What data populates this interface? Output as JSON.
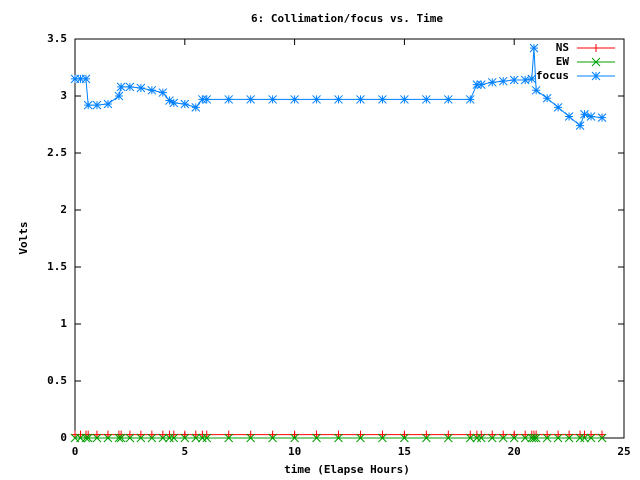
{
  "chart_data": {
    "type": "line",
    "title": "6: Collimation/focus vs. Time",
    "x_label": "time (Elapse Hours)",
    "y_label": "Volts",
    "x": [
      0,
      0.25,
      0.5,
      0.6,
      1,
      1.5,
      2,
      2.1,
      2.5,
      3,
      3.5,
      4,
      4.3,
      4.5,
      5,
      5.5,
      5.8,
      6,
      7,
      8,
      9,
      10,
      11,
      12,
      13,
      14,
      15,
      16,
      17,
      18,
      18.3,
      18.5,
      19,
      19.5,
      20,
      20.5,
      20.8,
      20.9,
      21,
      21.5,
      22,
      22.5,
      23,
      23.2,
      23.5,
      24
    ],
    "series": [
      {
        "name": "NS",
        "color": "#ff0000",
        "marker": "plus",
        "values": [
          0.03,
          0.03,
          0.03,
          0.03,
          0.03,
          0.03,
          0.03,
          0.03,
          0.03,
          0.03,
          0.03,
          0.03,
          0.03,
          0.03,
          0.03,
          0.03,
          0.03,
          0.03,
          0.03,
          0.03,
          0.03,
          0.03,
          0.03,
          0.03,
          0.03,
          0.03,
          0.03,
          0.03,
          0.03,
          0.03,
          0.03,
          0.03,
          0.03,
          0.03,
          0.03,
          0.03,
          0.03,
          0.03,
          0.03,
          0.03,
          0.03,
          0.03,
          0.03,
          0.03,
          0.03,
          0.03
        ]
      },
      {
        "name": "EW",
        "color": "#00a000",
        "marker": "cross",
        "values": [
          0,
          0,
          0,
          0,
          0,
          0,
          0,
          0,
          0,
          0,
          0,
          0,
          0,
          0,
          0,
          0,
          0,
          0,
          0,
          0,
          0,
          0,
          0,
          0,
          0,
          0,
          0,
          0,
          0,
          0,
          0,
          0,
          0,
          0,
          0,
          0,
          0,
          0,
          0,
          0,
          0,
          0,
          0,
          0,
          0,
          0
        ]
      },
      {
        "name": "focus",
        "color": "#0080ff",
        "marker": "star",
        "values": [
          3.15,
          3.15,
          3.15,
          2.92,
          2.92,
          2.93,
          3.0,
          3.08,
          3.08,
          3.07,
          3.05,
          3.03,
          2.96,
          2.94,
          2.93,
          2.9,
          2.97,
          2.97,
          2.97,
          2.97,
          2.97,
          2.97,
          2.97,
          2.97,
          2.97,
          2.97,
          2.97,
          2.97,
          2.97,
          2.97,
          3.1,
          3.1,
          3.12,
          3.13,
          3.14,
          3.14,
          3.15,
          3.42,
          3.05,
          2.98,
          2.9,
          2.82,
          2.74,
          2.84,
          2.82,
          2.81
        ]
      }
    ],
    "xlim": [
      0,
      25
    ],
    "xticks": [
      0,
      5,
      10,
      15,
      20,
      25
    ],
    "ylim": [
      0,
      3.5
    ],
    "yticks": [
      0,
      0.5,
      1,
      1.5,
      2,
      2.5,
      3,
      3.5
    ],
    "grid": false,
    "legend": "top-right"
  }
}
